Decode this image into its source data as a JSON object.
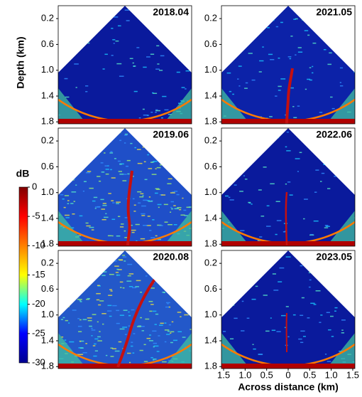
{
  "chart_data": [
    {
      "type": "image",
      "title": "2018.04",
      "ylabel": "Depth (km)",
      "color": "#0a1a9c",
      "ylim": [
        0,
        1.83
      ],
      "yticks": [
        0.2,
        0.6,
        {
          "value": 1,
          "label": "1.0"
        },
        1.4,
        1.8
      ]
    },
    {
      "type": "image",
      "title": "2019.06",
      "color": "#1f4fc8",
      "ylim": [
        0,
        1.83
      ],
      "yticks": [
        0.2,
        0.6,
        {
          "value": 1,
          "label": "1.0"
        },
        1.4,
        1.8
      ]
    },
    {
      "type": "image",
      "title": "2020.08",
      "color": "#2358c9",
      "ylim": [
        0,
        1.83
      ],
      "yticks": [
        0.2,
        0.6,
        {
          "value": 1,
          "label": "1.0"
        },
        1.4,
        1.8
      ]
    },
    {
      "type": "image",
      "title": "2021.05",
      "color": "#0c22a8",
      "ylim": [
        0,
        1.83
      ],
      "yticks": [
        0.2,
        0.6,
        {
          "value": 1,
          "label": "1.0"
        },
        1.4,
        1.8
      ]
    },
    {
      "type": "image",
      "title": "2022.06",
      "color": "#0a1a9c",
      "ylim": [
        0,
        1.83
      ],
      "yticks": [
        0.2,
        0.6,
        {
          "value": 1,
          "label": "1.0"
        },
        1.4,
        1.8
      ]
    },
    {
      "type": "image",
      "title": "2023.05",
      "color": "#0a1a9c",
      "ylim": [
        0,
        1.83
      ],
      "yticks": [
        0.2,
        0.6,
        {
          "value": 1,
          "label": "1.0"
        },
        1.4,
        1.8
      ],
      "xlabel": "Across distance (km)",
      "xlim": [
        -1.55,
        1.55
      ],
      "xticks": [
        {
          "value": -1.5,
          "label": "1.5"
        },
        {
          "value": -1,
          "label": "1.0"
        },
        {
          "value": -0.5,
          "label": "0.5"
        },
        0,
        0.5,
        {
          "value": 1,
          "label": "1.0"
        },
        1.5
      ]
    },
    {
      "type": "colorbar",
      "title": "dB",
      "ylim": [
        -30,
        0
      ],
      "yticks": [
        0,
        -5,
        -10,
        -15,
        -20,
        -25,
        -30
      ],
      "colors": [
        "#00008f",
        "#0000ff",
        "#00ffff",
        "#ffff00",
        "#ff8000",
        "#ff0000",
        "#800000"
      ]
    }
  ]
}
